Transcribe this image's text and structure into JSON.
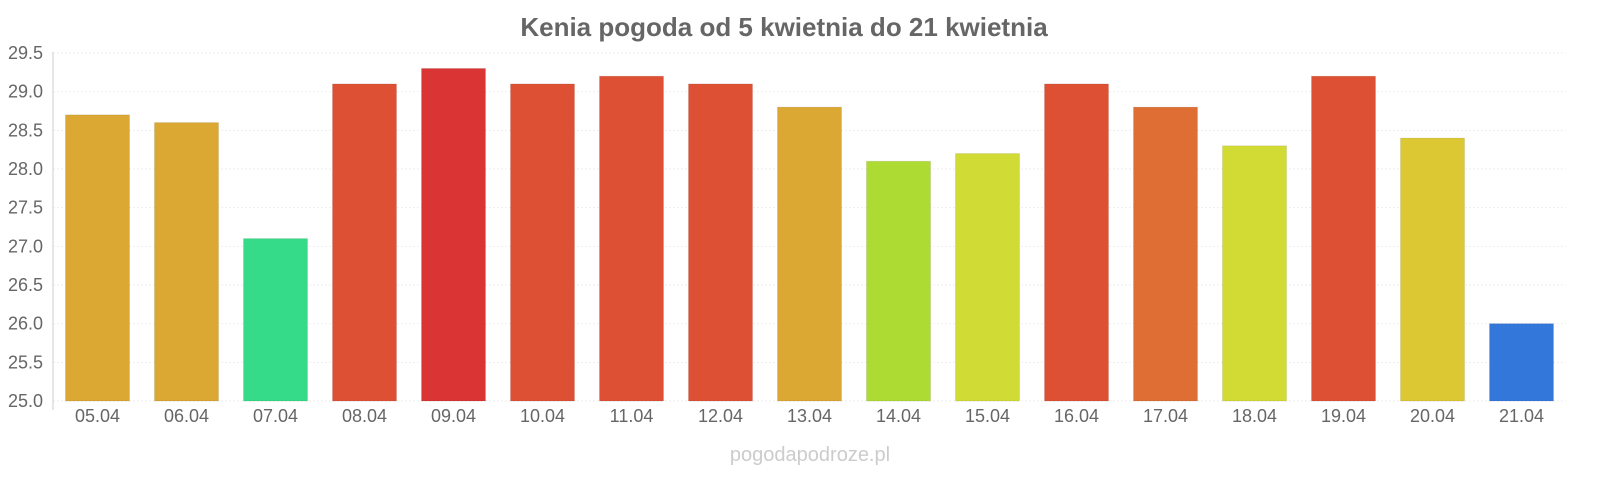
{
  "chart_data": {
    "type": "bar",
    "title": "Kenia pogoda od 5 kwietnia do 21 kwietnia",
    "xlabel": "",
    "ylabel": "",
    "ylim": [
      25.0,
      29.5
    ],
    "yticks": [
      "25.0",
      "25.5",
      "26.0",
      "26.5",
      "27.0",
      "27.5",
      "28.0",
      "28.5",
      "29.0",
      "29.5"
    ],
    "grid": true,
    "categories": [
      "05.04",
      "06.04",
      "07.04",
      "08.04",
      "09.04",
      "10.04",
      "11.04",
      "12.04",
      "13.04",
      "14.04",
      "15.04",
      "16.04",
      "17.04",
      "18.04",
      "19.04",
      "20.04",
      "21.04"
    ],
    "values": [
      28.7,
      28.6,
      27.1,
      29.1,
      29.3,
      29.1,
      29.2,
      29.1,
      28.8,
      28.1,
      28.2,
      29.1,
      28.8,
      28.3,
      29.2,
      28.4,
      26.0
    ],
    "colors": [
      "#dba833",
      "#dba833",
      "#35db88",
      "#de5034",
      "#da3434",
      "#de5034",
      "#de5034",
      "#de5034",
      "#dba833",
      "#addb33",
      "#d0db35",
      "#de5034",
      "#de6e34",
      "#d2db33",
      "#de5034",
      "#dbc833",
      "#3477db"
    ]
  },
  "watermark": "pogodapodroze.pl"
}
